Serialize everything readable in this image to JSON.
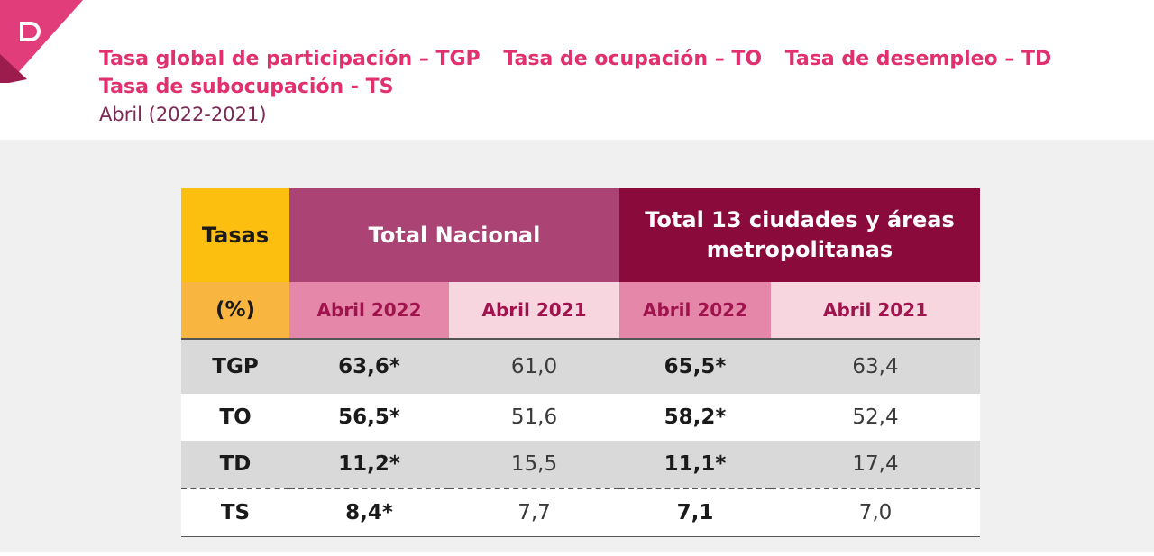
{
  "header": {
    "title_parts": [
      "Tasa global de participación – TGP",
      "Tasa de ocupación – TO",
      "Tasa de desempleo – TD",
      "Tasa de subocupación - TS"
    ],
    "subtitle": "Abril (2022-2021)"
  },
  "table": {
    "corner_top": "Tasas",
    "corner_bottom": "(%)",
    "group_national": "Total Nacional",
    "group_cities": "Total 13 ciudades y áreas metropolitanas",
    "col_2022": "Abril 2022",
    "col_2021": "Abril 2021",
    "rows": [
      {
        "label": "TGP",
        "nac_2022": "63,6*",
        "nac_2021": "61,0",
        "ciu_2022": "65,5*",
        "ciu_2021": "63,4"
      },
      {
        "label": "TO",
        "nac_2022": "56,5*",
        "nac_2021": "51,6",
        "ciu_2022": "58,2*",
        "ciu_2021": "52,4"
      },
      {
        "label": "TD",
        "nac_2022": "11,2*",
        "nac_2021": "15,5",
        "ciu_2022": "11,1*",
        "ciu_2021": "17,4"
      },
      {
        "label": "TS",
        "nac_2022": "8,4*",
        "nac_2021": "7,7",
        "ciu_2022": "7,1",
        "ciu_2021": "7,0"
      }
    ]
  },
  "colors": {
    "accent_pink": "#e0306e",
    "yellow": "#fcbf10",
    "magenta": "#ab4474",
    "wine": "#8b0a3c"
  }
}
